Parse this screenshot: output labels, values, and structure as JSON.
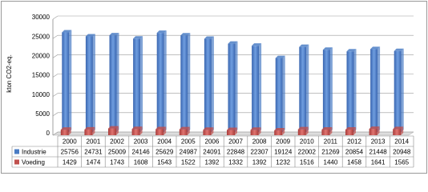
{
  "chart_data": {
    "type": "bar",
    "y_label": "kton CO2-eq.",
    "categories": [
      "2000",
      "2001",
      "2002",
      "2003",
      "2004",
      "2005",
      "2006",
      "2007",
      "2008",
      "2009",
      "2010",
      "2011",
      "2012",
      "2013",
      "2014"
    ],
    "series": [
      {
        "name": "Industrie",
        "color": "#4a7cc4",
        "values": [
          25756,
          24731,
          25009,
          24146,
          25629,
          24987,
          24091,
          22848,
          22307,
          19124,
          22002,
          21269,
          20854,
          21448,
          20948
        ]
      },
      {
        "name": "Voeding",
        "color": "#c0504d",
        "values": [
          1429,
          1474,
          1743,
          1608,
          1543,
          1522,
          1392,
          1332,
          1392,
          1232,
          1516,
          1440,
          1458,
          1641,
          1565
        ]
      }
    ],
    "ylim": [
      0,
      30000
    ],
    "yticks": [
      0,
      5000,
      10000,
      15000,
      20000,
      25000,
      30000
    ],
    "grid": true
  }
}
